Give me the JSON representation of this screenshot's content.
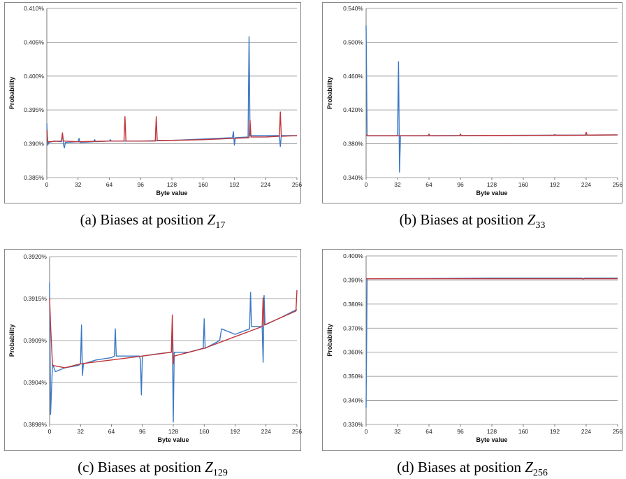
{
  "colors": {
    "observed": "#3b78c4",
    "expected": "#c0353a",
    "grid": "#8a8a8a",
    "axis": "#555555"
  },
  "chart_data": [
    {
      "type": "line",
      "caption": "(a) Biases at position",
      "caption_var": "Z",
      "caption_sub": "17",
      "xlabel": "Byte value",
      "ylabel": "Probability",
      "xlim": [
        0,
        256
      ],
      "xticks": [
        "0",
        "32",
        "64",
        "96",
        "128",
        "160",
        "192",
        "224",
        "256"
      ],
      "ylim": [
        0.385,
        0.41
      ],
      "yticks": [
        0.385,
        0.39,
        0.395,
        0.4,
        0.405,
        0.41
      ],
      "ytick_labels": [
        "0.385%",
        "0.390%",
        "0.395%",
        "0.400%",
        "0.405%",
        "0.410%"
      ],
      "series": [
        {
          "color": "#3b78c4",
          "points": [
            [
              0,
              0.393
            ],
            [
              1,
              0.3898
            ],
            [
              2,
              0.3902
            ],
            [
              8,
              0.3904
            ],
            [
              15,
              0.3903
            ],
            [
              16,
              0.3915
            ],
            [
              17,
              0.3899
            ],
            [
              18,
              0.3894
            ],
            [
              19,
              0.3902
            ],
            [
              32,
              0.3903
            ],
            [
              33,
              0.3908
            ],
            [
              34,
              0.3902
            ],
            [
              48,
              0.3903
            ],
            [
              49,
              0.3906
            ],
            [
              50,
              0.3903
            ],
            [
              64,
              0.3904
            ],
            [
              65,
              0.3906
            ],
            [
              66,
              0.3904
            ],
            [
              96,
              0.3904
            ],
            [
              128,
              0.3905
            ],
            [
              160,
              0.3907
            ],
            [
              176,
              0.3908
            ],
            [
              190,
              0.3909
            ],
            [
              191,
              0.3918
            ],
            [
              192,
              0.3898
            ],
            [
              193,
              0.3909
            ],
            [
              206,
              0.391
            ],
            [
              207,
              0.4058
            ],
            [
              208,
              0.3912
            ],
            [
              222,
              0.3912
            ],
            [
              224,
              0.3912
            ],
            [
              238,
              0.3912
            ],
            [
              239,
              0.3896
            ],
            [
              240,
              0.3912
            ],
            [
              256,
              0.3912
            ]
          ]
        },
        {
          "color": "#c0353a",
          "points": [
            [
              0,
              0.392
            ],
            [
              1,
              0.3903
            ],
            [
              15,
              0.3904
            ],
            [
              16,
              0.3916
            ],
            [
              17,
              0.3904
            ],
            [
              32,
              0.3903
            ],
            [
              64,
              0.3904
            ],
            [
              79,
              0.3904
            ],
            [
              80,
              0.394
            ],
            [
              81,
              0.3904
            ],
            [
              96,
              0.3904
            ],
            [
              111,
              0.3904
            ],
            [
              112,
              0.394
            ],
            [
              113,
              0.3905
            ],
            [
              128,
              0.3905
            ],
            [
              160,
              0.3906
            ],
            [
              192,
              0.3908
            ],
            [
              207,
              0.3909
            ],
            [
              208,
              0.3935
            ],
            [
              209,
              0.391
            ],
            [
              224,
              0.391
            ],
            [
              238,
              0.3911
            ],
            [
              239,
              0.3947
            ],
            [
              240,
              0.3911
            ],
            [
              256,
              0.3912
            ]
          ]
        }
      ]
    },
    {
      "type": "line",
      "caption": "(b) Biases at position",
      "caption_var": "Z",
      "caption_sub": "33",
      "xlabel": "Byte value",
      "ylabel": "Probability",
      "xlim": [
        0,
        256
      ],
      "xticks": [
        "0",
        "32",
        "64",
        "96",
        "128",
        "160",
        "192",
        "224",
        "256"
      ],
      "ylim": [
        0.34,
        0.54
      ],
      "yticks": [
        0.34,
        0.38,
        0.42,
        0.46,
        0.5,
        0.54
      ],
      "ytick_labels": [
        "0.340%",
        "0.380%",
        "0.420%",
        "0.460%",
        "0.500%",
        "0.540%"
      ],
      "series": [
        {
          "color": "#3b78c4",
          "points": [
            [
              0,
              0.52
            ],
            [
              1,
              0.3895
            ],
            [
              31,
              0.3895
            ],
            [
              32,
              0.3905
            ],
            [
              33,
              0.477
            ],
            [
              34,
              0.3465
            ],
            [
              35,
              0.3895
            ],
            [
              64,
              0.3895
            ],
            [
              96,
              0.3897
            ],
            [
              128,
              0.3898
            ],
            [
              160,
              0.3899
            ],
            [
              192,
              0.3901
            ],
            [
              224,
              0.3902
            ],
            [
              256,
              0.3905
            ]
          ]
        },
        {
          "color": "#c0353a",
          "points": [
            [
              0,
              0.391
            ],
            [
              1,
              0.3895
            ],
            [
              63,
              0.3895
            ],
            [
              64,
              0.3915
            ],
            [
              65,
              0.3895
            ],
            [
              95,
              0.3896
            ],
            [
              96,
              0.3916
            ],
            [
              97,
              0.3896
            ],
            [
              128,
              0.3898
            ],
            [
              191,
              0.39
            ],
            [
              192,
              0.391
            ],
            [
              193,
              0.39
            ],
            [
              223,
              0.3901
            ],
            [
              224,
              0.3935
            ],
            [
              225,
              0.3902
            ],
            [
              256,
              0.3905
            ]
          ]
        }
      ]
    },
    {
      "type": "line",
      "caption": "(c) Biases at position",
      "caption_var": "Z",
      "caption_sub": "129",
      "xlabel": "Byte value",
      "ylabel": "Probability",
      "xlim": [
        0,
        256
      ],
      "xticks": [
        "0",
        "32",
        "64",
        "96",
        "128",
        "160",
        "192",
        "224",
        "256"
      ],
      "ylim": [
        0.38982,
        0.39198
      ],
      "yticks": [
        0.38982,
        0.39036,
        0.3909,
        0.39144,
        0.39198
      ],
      "ytick_labels": [
        "0.3898%",
        "0.3904%",
        "0.3909%",
        "0.3915%",
        "0.3920%"
      ],
      "series": [
        {
          "color": "#3b78c4",
          "points": [
            [
              0,
              0.39165
            ],
            [
              1,
              0.38995
            ],
            [
              3,
              0.3906
            ],
            [
              6,
              0.3905
            ],
            [
              16,
              0.39055
            ],
            [
              30,
              0.39058
            ],
            [
              32,
              0.3906
            ],
            [
              33,
              0.3911
            ],
            [
              34,
              0.39045
            ],
            [
              35,
              0.3906
            ],
            [
              48,
              0.39065
            ],
            [
              64,
              0.39068
            ],
            [
              67,
              0.3907
            ],
            [
              68,
              0.39105
            ],
            [
              69,
              0.3907
            ],
            [
              80,
              0.3907
            ],
            [
              93,
              0.3907
            ],
            [
              94,
              0.39065
            ],
            [
              95,
              0.3902
            ],
            [
              96,
              0.3907
            ],
            [
              112,
              0.39073
            ],
            [
              126,
              0.39075
            ],
            [
              127,
              0.39112
            ],
            [
              128,
              0.38985
            ],
            [
              129,
              0.39075
            ],
            [
              144,
              0.39075
            ],
            [
              159,
              0.3908
            ],
            [
              160,
              0.39118
            ],
            [
              161,
              0.3908
            ],
            [
              176,
              0.3909
            ],
            [
              178,
              0.39105
            ],
            [
              192,
              0.39098
            ],
            [
              207,
              0.39105
            ],
            [
              208,
              0.39152
            ],
            [
              209,
              0.39108
            ],
            [
              220,
              0.39108
            ],
            [
              221,
              0.39062
            ],
            [
              222,
              0.39148
            ],
            [
              223,
              0.3911
            ],
            [
              240,
              0.3912
            ],
            [
              256,
              0.3913
            ]
          ]
        },
        {
          "color": "#c0353a",
          "points": [
            [
              0,
              0.39145
            ],
            [
              1,
              0.3911
            ],
            [
              3,
              0.39058
            ],
            [
              16,
              0.39055
            ],
            [
              32,
              0.3906
            ],
            [
              64,
              0.39065
            ],
            [
              96,
              0.3907
            ],
            [
              126,
              0.39075
            ],
            [
              127,
              0.39123
            ],
            [
              128,
              0.3906
            ],
            [
              129,
              0.3907
            ],
            [
              160,
              0.3908
            ],
            [
              192,
              0.39095
            ],
            [
              220,
              0.39108
            ],
            [
              221,
              0.39145
            ],
            [
              222,
              0.3911
            ],
            [
              255,
              0.39128
            ],
            [
              256,
              0.39155
            ]
          ]
        }
      ]
    },
    {
      "type": "line",
      "caption": "(d) Biases at position",
      "caption_var": "Z",
      "caption_sub": "256",
      "xlabel": "Byte value",
      "ylabel": "Probability",
      "xlim": [
        0,
        256
      ],
      "xticks": [
        "0",
        "32",
        "64",
        "96",
        "128",
        "160",
        "192",
        "224",
        "256"
      ],
      "ylim": [
        0.33,
        0.4
      ],
      "yticks": [
        0.33,
        0.34,
        0.35,
        0.36,
        0.37,
        0.38,
        0.39,
        0.4
      ],
      "ytick_labels": [
        "0.330%",
        "0.340%",
        "0.350%",
        "0.360%",
        "0.370%",
        "0.380%",
        "0.390%",
        "0.400%"
      ],
      "series": [
        {
          "color": "#3b78c4",
          "points": [
            [
              0,
              0.337
            ],
            [
              1,
              0.3905
            ],
            [
              64,
              0.3906
            ],
            [
              128,
              0.3908
            ],
            [
              192,
              0.3908
            ],
            [
              220,
              0.3908
            ],
            [
              221,
              0.3903
            ],
            [
              222,
              0.3908
            ],
            [
              256,
              0.3908
            ]
          ]
        },
        {
          "color": "#c0353a",
          "points": [
            [
              0,
              0.3905
            ],
            [
              256,
              0.3905
            ]
          ]
        }
      ]
    }
  ]
}
